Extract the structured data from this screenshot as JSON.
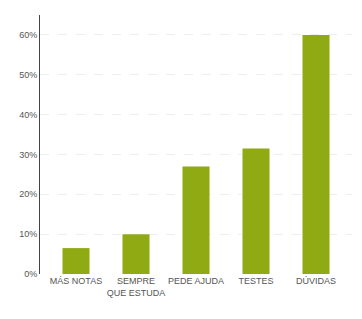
{
  "chart_data": {
    "type": "bar",
    "categories": [
      "MÁS NOTAS",
      "SEMPRE\nQUE ESTUDA",
      "PEDE AJUDA",
      "TESTES",
      "DÚVIDAS"
    ],
    "values": [
      6.5,
      10.0,
      27.0,
      31.5,
      60.0
    ],
    "color": "#8faa13",
    "ylim": [
      0,
      65
    ],
    "yticks": [
      {
        "value": 0,
        "label": "0%"
      },
      {
        "value": 10,
        "label": "10%"
      },
      {
        "value": 20,
        "label": "20%"
      },
      {
        "value": 30,
        "label": "30%"
      },
      {
        "value": 40,
        "label": "40%"
      },
      {
        "value": 50,
        "label": "50%"
      },
      {
        "value": 60,
        "label": "60%"
      }
    ],
    "grid": true
  }
}
